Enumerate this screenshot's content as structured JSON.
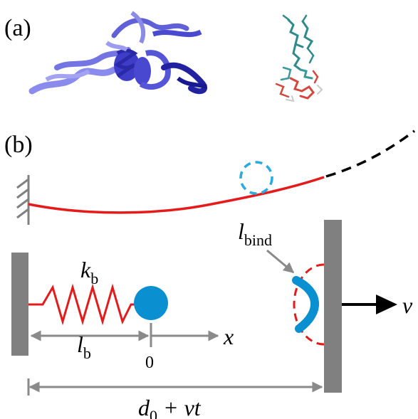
{
  "panel_a": {
    "label": "(a)"
  },
  "panel_b": {
    "label": "(b)",
    "spring_constant": {
      "symbol": "k",
      "subscript": "b"
    },
    "spring_length": {
      "symbol": "l",
      "subscript": "b"
    },
    "origin": "0",
    "x_axis": "x",
    "binding_length": {
      "symbol": "l",
      "subscript": "bind"
    },
    "velocity": "v",
    "distance": {
      "symbol": "d",
      "subscript": "0",
      "rest": " + vt"
    }
  },
  "colors": {
    "strand_red": "#e51b1b",
    "bead_blue": "#0a8fd0",
    "wall_gray": "#808080",
    "arrow_gray": "#8a8a8a",
    "protein_blue": "#3f3fd6",
    "peptide_teal": "#2f8b8b",
    "peptide_red": "#d4473f"
  },
  "icons": [
    "protein-ribbon-icon",
    "peptide-stick-icon",
    "fixed-wall-hatch-icon",
    "spring-icon",
    "bead-icon",
    "binding-site-icon"
  ]
}
